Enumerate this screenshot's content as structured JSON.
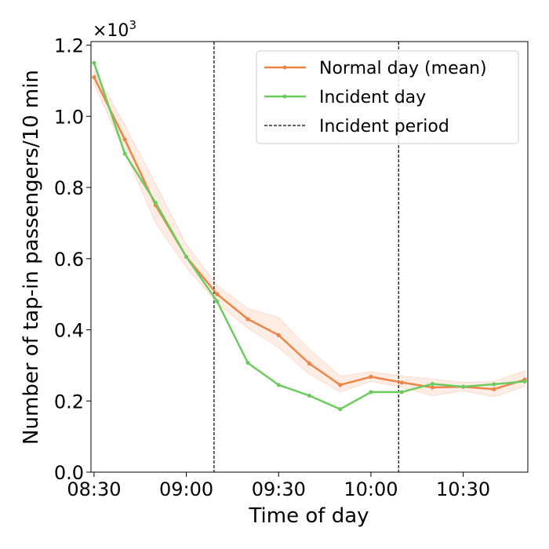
{
  "chart_data": {
    "type": "line",
    "xlabel": "Time of day",
    "ylabel": "Number of tap-in passengers/10 min",
    "y_multiplier": "×10",
    "y_multiplier_exp": "3",
    "xlim": [
      -1,
      141
    ],
    "ylim": [
      0,
      1.21
    ],
    "x_ticks": [
      {
        "value": 0,
        "label": "08:30"
      },
      {
        "value": 30,
        "label": "09:00"
      },
      {
        "value": 60,
        "label": "09:30"
      },
      {
        "value": 90,
        "label": "10:00"
      },
      {
        "value": 120,
        "label": "10:30"
      }
    ],
    "y_ticks": [
      {
        "value": 0.0,
        "label": "0.0"
      },
      {
        "value": 0.2,
        "label": "0.2"
      },
      {
        "value": 0.4,
        "label": "0.4"
      },
      {
        "value": 0.6,
        "label": "0.6"
      },
      {
        "value": 0.8,
        "label": "0.8"
      },
      {
        "value": 1.0,
        "label": "1.0"
      },
      {
        "value": 1.2,
        "label": "1.2"
      }
    ],
    "x": [
      0,
      10,
      20,
      30,
      40,
      50,
      60,
      70,
      80,
      90,
      100,
      110,
      120,
      130,
      140
    ],
    "series": [
      {
        "name": "Normal day (mean)",
        "color": "#ef8447",
        "values": [
          1.11,
          0.935,
          0.75,
          0.605,
          0.5,
          0.43,
          0.385,
          0.305,
          0.245,
          0.268,
          0.252,
          0.238,
          0.24,
          0.233,
          0.26
        ],
        "band_upper": [
          1.13,
          0.975,
          0.81,
          0.64,
          0.525,
          0.46,
          0.435,
          0.345,
          0.27,
          0.282,
          0.27,
          0.262,
          0.252,
          0.255,
          0.285
        ],
        "band_lower": [
          1.09,
          0.9,
          0.7,
          0.575,
          0.475,
          0.405,
          0.35,
          0.275,
          0.225,
          0.255,
          0.238,
          0.215,
          0.228,
          0.212,
          0.24
        ]
      },
      {
        "name": "Incident day",
        "color": "#6ccb5f",
        "values": [
          1.15,
          0.895,
          0.757,
          0.605,
          0.48,
          0.307,
          0.245,
          0.215,
          0.177,
          0.225,
          0.225,
          0.248,
          0.24,
          0.247,
          0.255
        ]
      }
    ],
    "incident_period": {
      "name": "Incident period",
      "start": 39,
      "end": 99
    },
    "legend_position": "top-right"
  }
}
